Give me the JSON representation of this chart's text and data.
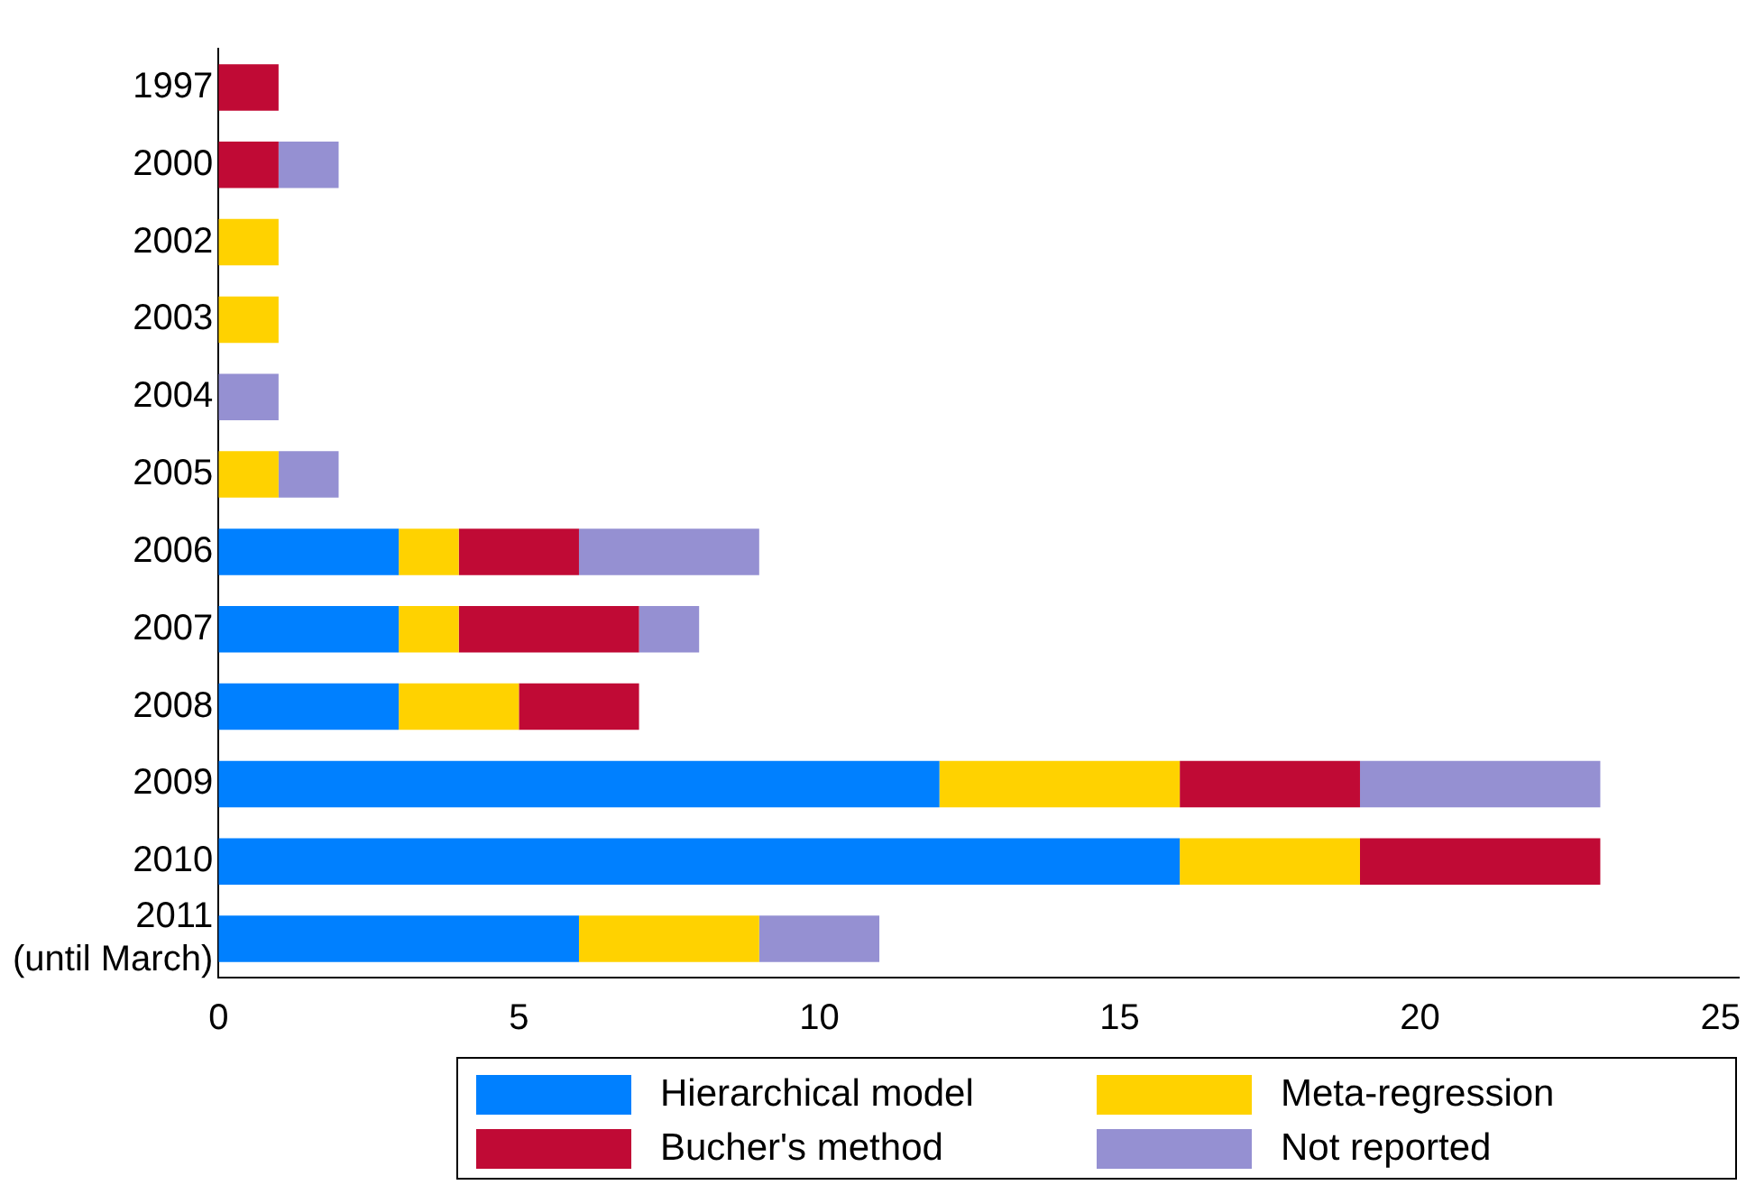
{
  "chart_data": {
    "type": "bar",
    "orientation": "horizontal",
    "stacked": true,
    "categories": [
      "1997",
      "2000",
      "2002",
      "2003",
      "2004",
      "2005",
      "2006",
      "2007",
      "2008",
      "2009",
      "2010",
      "2011\n(until March)"
    ],
    "series": [
      {
        "name": "Hierarchical model",
        "color": "#0080ff",
        "values": [
          0,
          0,
          0,
          0,
          0,
          0,
          3,
          3,
          3,
          12,
          16,
          6
        ]
      },
      {
        "name": "Meta-regression",
        "color": "#ffd200",
        "values": [
          0,
          0,
          1,
          1,
          0,
          1,
          1,
          1,
          2,
          4,
          3,
          3
        ]
      },
      {
        "name": "Bucher's method",
        "color": "#c00a35",
        "values": [
          1,
          1,
          0,
          0,
          0,
          0,
          2,
          3,
          2,
          3,
          4,
          0
        ]
      },
      {
        "name": "Not reported",
        "color": "#9590d2",
        "values": [
          0,
          1,
          0,
          0,
          1,
          1,
          3,
          1,
          0,
          4,
          0,
          2
        ]
      }
    ],
    "xlim": [
      0,
      25.3
    ],
    "xticks": [
      0,
      5,
      10,
      15,
      20,
      25
    ],
    "grid": false,
    "legend": "bottom"
  }
}
